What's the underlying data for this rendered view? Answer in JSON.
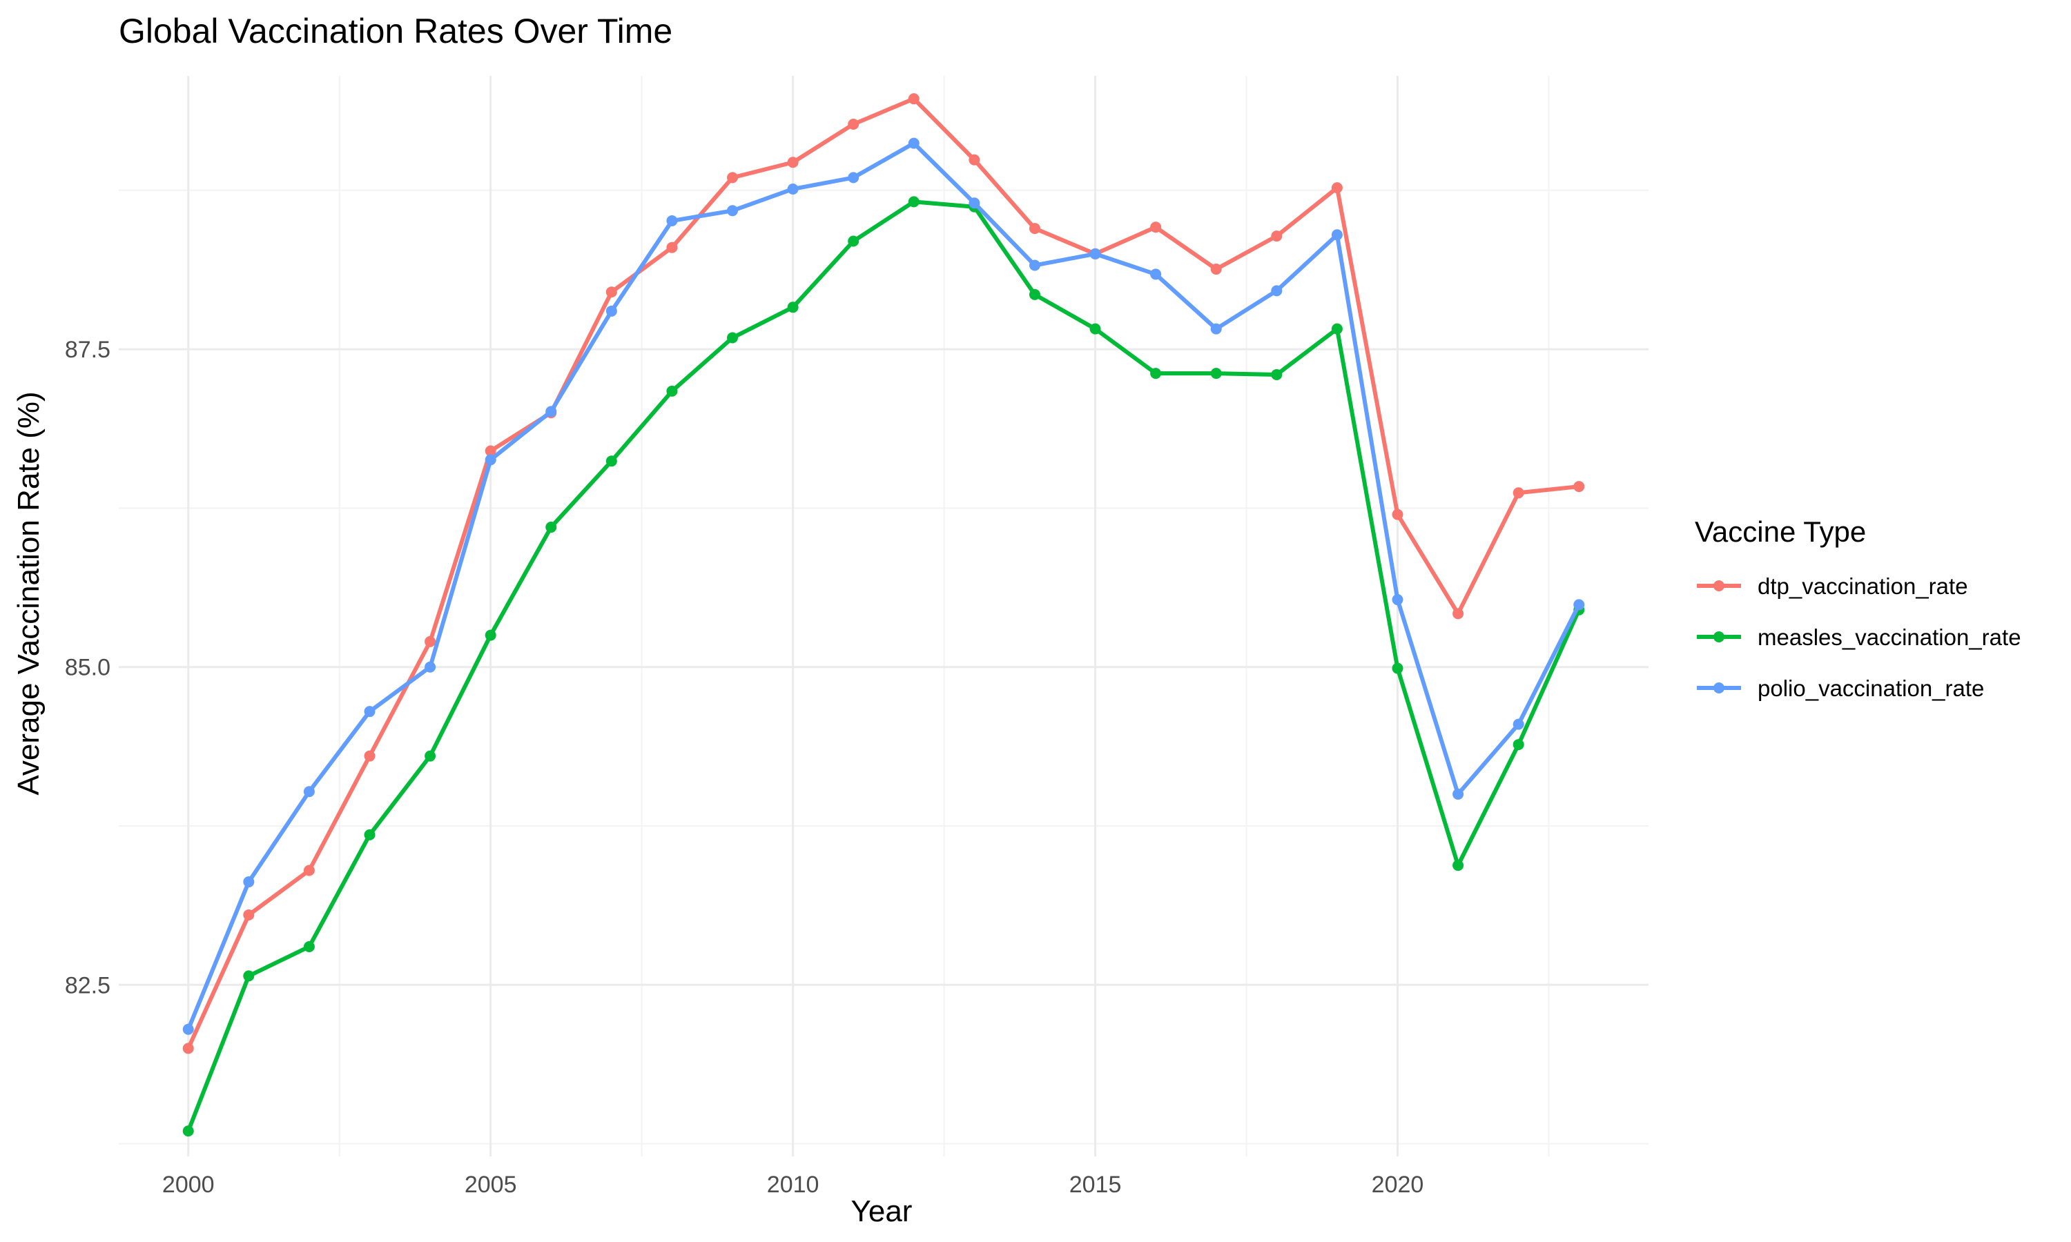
{
  "chart_data": {
    "type": "line",
    "title": "Global Vaccination Rates Over Time",
    "xlabel": "Year",
    "ylabel": "Average Vaccination Rate (%)",
    "xlim": [
      1998.85,
      2024.15
    ],
    "ylim": [
      81.15,
      89.65
    ],
    "x_ticks": [
      2000,
      2005,
      2010,
      2015,
      2020
    ],
    "x_tick_labels": [
      "2000",
      "2005",
      "2010",
      "2015",
      "2020"
    ],
    "x_minor_ticks": [
      2002.5,
      2007.5,
      2012.5,
      2017.5,
      2022.5
    ],
    "y_ticks": [
      82.5,
      85.0,
      87.5
    ],
    "y_tick_labels": [
      "82.5",
      "85.0",
      "87.5"
    ],
    "y_minor_ticks": [
      81.25,
      83.75,
      86.25,
      88.75
    ],
    "grid": true,
    "legend": {
      "title": "Vaccine Type",
      "placement": "right"
    },
    "x": [
      2000,
      2001,
      2002,
      2003,
      2004,
      2005,
      2006,
      2007,
      2008,
      2009,
      2010,
      2011,
      2012,
      2013,
      2014,
      2015,
      2016,
      2017,
      2018,
      2019,
      2020,
      2021,
      2022,
      2023
    ],
    "series": [
      {
        "name": "dtp_vaccination_rate",
        "color": "#F8766D",
        "values": [
          82.0,
          83.05,
          83.4,
          84.3,
          85.2,
          86.7,
          87.0,
          87.95,
          88.3,
          88.85,
          88.97,
          89.27,
          89.47,
          88.99,
          88.45,
          88.25,
          88.46,
          88.13,
          88.39,
          88.77,
          86.2,
          85.42,
          86.37,
          86.42
        ]
      },
      {
        "name": "measles_vaccination_rate",
        "color": "#00BA38",
        "values": [
          81.35,
          82.57,
          82.8,
          83.68,
          84.3,
          85.25,
          86.1,
          86.62,
          87.17,
          87.59,
          87.83,
          88.35,
          88.66,
          88.62,
          87.93,
          87.66,
          87.31,
          87.31,
          87.3,
          87.66,
          84.99,
          83.44,
          84.39,
          85.45
        ]
      },
      {
        "name": "polio_vaccination_rate",
        "color": "#619CFF",
        "values": [
          82.15,
          83.31,
          84.02,
          84.65,
          85.0,
          86.63,
          87.01,
          87.8,
          88.51,
          88.59,
          88.76,
          88.85,
          89.12,
          88.65,
          88.16,
          88.25,
          88.09,
          87.66,
          87.96,
          88.4,
          85.53,
          84.0,
          84.55,
          85.49
        ]
      }
    ]
  }
}
